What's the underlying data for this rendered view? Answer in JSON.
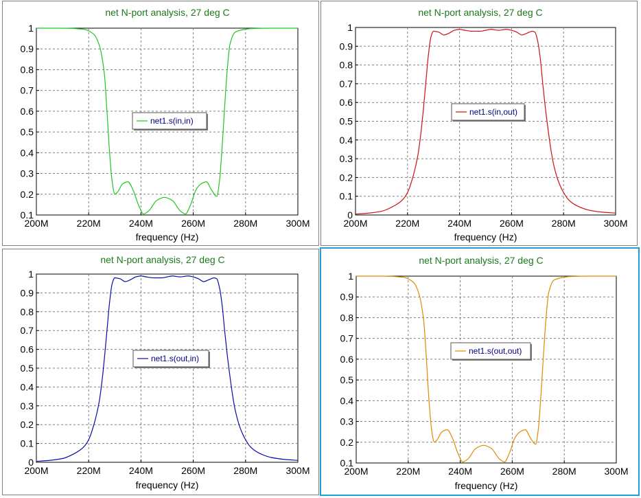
{
  "colors": {
    "title": "#1a7a1a",
    "grid": "#808080",
    "legend_text": "#000080",
    "selection_border": "#1e9fd8"
  },
  "chart_data": [
    {
      "type": "line",
      "title": "net N-port analysis, 27 deg C",
      "xlabel": "frequency (Hz)",
      "ylabel": "",
      "xlim": [
        200,
        300
      ],
      "x_unit": "MHz",
      "ylim": [
        0.1,
        1
      ],
      "x_ticks": [
        "200M",
        "220M",
        "240M",
        "260M",
        "280M",
        "300M"
      ],
      "y_ticks": [
        "0.1",
        "0.2",
        "0.3",
        "0.4",
        "0.5",
        "0.6",
        "0.7",
        "0.8",
        "0.9",
        "1"
      ],
      "grid": true,
      "legend_placement": "center",
      "series": [
        {
          "name": "net1.s(in,in)",
          "color": "#22c322",
          "x": [
            200,
            210,
            218,
            222,
            224,
            226,
            227,
            228,
            229,
            230,
            231,
            233,
            235,
            237,
            239,
            241,
            243,
            246,
            249,
            252,
            255,
            257,
            259,
            261,
            263,
            265,
            267,
            269,
            270,
            271,
            272,
            273,
            274,
            276,
            278,
            282,
            290,
            300
          ],
          "y": [
            1.0,
            1.0,
            0.995,
            0.97,
            0.92,
            0.78,
            0.6,
            0.4,
            0.26,
            0.2,
            0.21,
            0.25,
            0.26,
            0.22,
            0.15,
            0.105,
            0.12,
            0.17,
            0.185,
            0.17,
            0.12,
            0.105,
            0.15,
            0.22,
            0.25,
            0.26,
            0.22,
            0.19,
            0.26,
            0.42,
            0.62,
            0.8,
            0.92,
            0.98,
            0.99,
            0.998,
            1.0,
            1.0
          ]
        }
      ]
    },
    {
      "type": "line",
      "title": "net N-port analysis, 27 deg C",
      "xlabel": "frequency (Hz)",
      "ylabel": "",
      "xlim": [
        200,
        300
      ],
      "x_unit": "MHz",
      "ylim": [
        0,
        1
      ],
      "x_ticks": [
        "200M",
        "220M",
        "240M",
        "260M",
        "280M",
        "300M"
      ],
      "y_ticks": [
        "0",
        "0.1",
        "0.2",
        "0.3",
        "0.4",
        "0.5",
        "0.6",
        "0.7",
        "0.8",
        "0.9",
        "1"
      ],
      "grid": true,
      "legend_placement": "center",
      "series": [
        {
          "name": "net1.s(in,out)",
          "color": "#cc1111",
          "x": [
            200,
            205,
            210,
            215,
            218,
            220,
            222,
            224,
            225,
            226,
            227,
            228,
            229,
            230,
            232,
            234,
            236,
            238,
            240,
            242,
            245,
            248,
            250,
            252,
            255,
            258,
            260,
            262,
            264,
            266,
            268,
            269,
            270,
            271,
            272,
            273,
            274,
            275,
            276,
            278,
            280,
            282,
            285,
            290,
            295,
            300
          ],
          "y": [
            0.005,
            0.01,
            0.02,
            0.05,
            0.08,
            0.12,
            0.2,
            0.32,
            0.42,
            0.55,
            0.7,
            0.85,
            0.95,
            0.98,
            0.975,
            0.96,
            0.97,
            0.985,
            0.99,
            0.985,
            0.98,
            0.98,
            0.985,
            0.99,
            0.985,
            0.99,
            0.985,
            0.975,
            0.96,
            0.97,
            0.98,
            0.975,
            0.93,
            0.84,
            0.7,
            0.57,
            0.46,
            0.36,
            0.28,
            0.18,
            0.12,
            0.08,
            0.05,
            0.025,
            0.015,
            0.01
          ]
        }
      ]
    },
    {
      "type": "line",
      "title": "net N-port analysis, 27 deg C",
      "xlabel": "frequency (Hz)",
      "ylabel": "",
      "xlim": [
        200,
        300
      ],
      "x_unit": "MHz",
      "ylim": [
        0,
        1
      ],
      "x_ticks": [
        "200M",
        "220M",
        "240M",
        "260M",
        "280M",
        "300M"
      ],
      "y_ticks": [
        "0",
        "0.1",
        "0.2",
        "0.3",
        "0.4",
        "0.5",
        "0.6",
        "0.7",
        "0.8",
        "0.9",
        "1"
      ],
      "grid": true,
      "legend_placement": "center",
      "series": [
        {
          "name": "net1.s(out,in)",
          "color": "#0a0aaa",
          "x": [
            200,
            205,
            210,
            215,
            218,
            220,
            222,
            224,
            225,
            226,
            227,
            228,
            229,
            230,
            232,
            234,
            236,
            238,
            240,
            242,
            245,
            248,
            250,
            252,
            255,
            258,
            260,
            262,
            264,
            266,
            268,
            269,
            270,
            271,
            272,
            273,
            274,
            275,
            276,
            278,
            280,
            282,
            285,
            290,
            295,
            300
          ],
          "y": [
            0.005,
            0.01,
            0.02,
            0.05,
            0.08,
            0.12,
            0.2,
            0.32,
            0.42,
            0.55,
            0.7,
            0.85,
            0.95,
            0.98,
            0.975,
            0.96,
            0.97,
            0.985,
            0.99,
            0.985,
            0.98,
            0.98,
            0.985,
            0.99,
            0.985,
            0.99,
            0.985,
            0.975,
            0.96,
            0.97,
            0.98,
            0.975,
            0.93,
            0.84,
            0.7,
            0.57,
            0.46,
            0.36,
            0.28,
            0.18,
            0.12,
            0.08,
            0.05,
            0.025,
            0.015,
            0.01
          ]
        }
      ]
    },
    {
      "type": "line",
      "title": "net N-port analysis, 27 deg C",
      "xlabel": "frequency (Hz)",
      "ylabel": "",
      "xlim": [
        200,
        300
      ],
      "x_unit": "MHz",
      "ylim": [
        0.1,
        1
      ],
      "x_ticks": [
        "200M",
        "220M",
        "240M",
        "260M",
        "280M",
        "300M"
      ],
      "y_ticks": [
        "0.1",
        "0.2",
        "0.3",
        "0.4",
        "0.5",
        "0.6",
        "0.7",
        "0.8",
        "0.9",
        "1"
      ],
      "grid": true,
      "legend_placement": "center",
      "series": [
        {
          "name": "net1.s(out,out)",
          "color": "#e08a00",
          "x": [
            200,
            210,
            218,
            222,
            224,
            226,
            227,
            228,
            229,
            230,
            231,
            233,
            235,
            237,
            239,
            241,
            243,
            246,
            249,
            252,
            255,
            257,
            259,
            261,
            263,
            265,
            267,
            269,
            270,
            271,
            272,
            273,
            274,
            276,
            278,
            282,
            290,
            300
          ],
          "y": [
            1.0,
            1.0,
            0.995,
            0.97,
            0.92,
            0.78,
            0.6,
            0.4,
            0.26,
            0.2,
            0.21,
            0.25,
            0.26,
            0.22,
            0.15,
            0.105,
            0.12,
            0.17,
            0.185,
            0.17,
            0.12,
            0.105,
            0.15,
            0.22,
            0.25,
            0.26,
            0.22,
            0.19,
            0.26,
            0.42,
            0.62,
            0.8,
            0.92,
            0.98,
            0.99,
            0.998,
            1.0,
            1.0
          ]
        }
      ]
    }
  ]
}
